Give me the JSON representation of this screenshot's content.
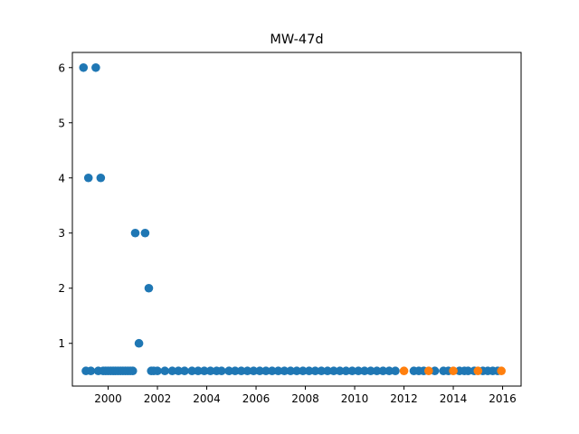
{
  "chart_data": {
    "type": "scatter",
    "title": "MW-47d",
    "xlabel": "",
    "ylabel": "",
    "xlim": [
      1998.55,
      2016.75
    ],
    "ylim": [
      0.225,
      6.275
    ],
    "grid": false,
    "x_ticks": [
      2000,
      2002,
      2004,
      2006,
      2008,
      2010,
      2012,
      2014,
      2016
    ],
    "x_tick_labels": [
      "2000",
      "2002",
      "2004",
      "2006",
      "2008",
      "2010",
      "2012",
      "2014",
      "2016"
    ],
    "y_ticks": [
      1,
      2,
      3,
      4,
      5,
      6
    ],
    "y_tick_labels": [
      "1",
      "2",
      "3",
      "4",
      "5",
      "6"
    ],
    "colors": {
      "series_1": "#1f77b4",
      "series_2": "#ff7f0e"
    },
    "series": [
      {
        "points": [
          [
            1999.0,
            6
          ],
          [
            1999.1,
            0.5
          ],
          [
            1999.2,
            4
          ],
          [
            1999.3,
            0.5
          ],
          [
            1999.5,
            6
          ],
          [
            1999.6,
            0.5
          ],
          [
            1999.7,
            4
          ],
          [
            1999.8,
            0.5
          ],
          [
            1999.9,
            0.5
          ],
          [
            2000.0,
            0.5
          ],
          [
            2000.1,
            0.5
          ],
          [
            2000.2,
            0.5
          ],
          [
            2000.3,
            0.5
          ],
          [
            2000.4,
            0.5
          ],
          [
            2000.5,
            0.5
          ],
          [
            2000.6,
            0.5
          ],
          [
            2000.7,
            0.5
          ],
          [
            2000.8,
            0.5
          ],
          [
            2000.9,
            0.5
          ],
          [
            2001.0,
            0.5
          ],
          [
            2001.1,
            3
          ],
          [
            2001.25,
            1
          ],
          [
            2001.5,
            3
          ],
          [
            2001.65,
            2
          ],
          [
            2001.75,
            0.5
          ],
          [
            2001.85,
            0.5
          ],
          [
            2002.0,
            0.5
          ],
          [
            2002.3,
            0.5
          ],
          [
            2002.6,
            0.5
          ],
          [
            2002.85,
            0.5
          ],
          [
            2003.1,
            0.5
          ],
          [
            2003.4,
            0.5
          ],
          [
            2003.65,
            0.5
          ],
          [
            2003.9,
            0.5
          ],
          [
            2004.15,
            0.5
          ],
          [
            2004.4,
            0.5
          ],
          [
            2004.6,
            0.5
          ],
          [
            2004.9,
            0.5
          ],
          [
            2005.15,
            0.5
          ],
          [
            2005.4,
            0.5
          ],
          [
            2005.65,
            0.5
          ],
          [
            2005.9,
            0.5
          ],
          [
            2006.15,
            0.5
          ],
          [
            2006.4,
            0.5
          ],
          [
            2006.65,
            0.5
          ],
          [
            2006.9,
            0.5
          ],
          [
            2007.15,
            0.5
          ],
          [
            2007.4,
            0.5
          ],
          [
            2007.65,
            0.5
          ],
          [
            2007.9,
            0.5
          ],
          [
            2008.15,
            0.5
          ],
          [
            2008.4,
            0.5
          ],
          [
            2008.65,
            0.5
          ],
          [
            2008.9,
            0.5
          ],
          [
            2009.15,
            0.5
          ],
          [
            2009.4,
            0.5
          ],
          [
            2009.65,
            0.5
          ],
          [
            2009.9,
            0.5
          ],
          [
            2010.15,
            0.5
          ],
          [
            2010.4,
            0.5
          ],
          [
            2010.65,
            0.5
          ],
          [
            2010.9,
            0.5
          ],
          [
            2011.15,
            0.5
          ],
          [
            2011.4,
            0.5
          ],
          [
            2011.65,
            0.5
          ],
          [
            2012.4,
            0.5
          ],
          [
            2012.6,
            0.5
          ],
          [
            2012.8,
            0.5
          ],
          [
            2013.25,
            0.5
          ],
          [
            2013.6,
            0.5
          ],
          [
            2013.8,
            0.5
          ],
          [
            2014.25,
            0.5
          ],
          [
            2014.45,
            0.5
          ],
          [
            2014.6,
            0.5
          ],
          [
            2014.85,
            0.5
          ],
          [
            2015.2,
            0.5
          ],
          [
            2015.4,
            0.5
          ],
          [
            2015.6,
            0.5
          ],
          [
            2015.8,
            0.5
          ]
        ]
      },
      {
        "points": [
          [
            2012.0,
            0.5
          ],
          [
            2013.0,
            0.5
          ],
          [
            2014.0,
            0.5
          ],
          [
            2015.0,
            0.5
          ],
          [
            2015.95,
            0.5
          ]
        ]
      }
    ]
  }
}
